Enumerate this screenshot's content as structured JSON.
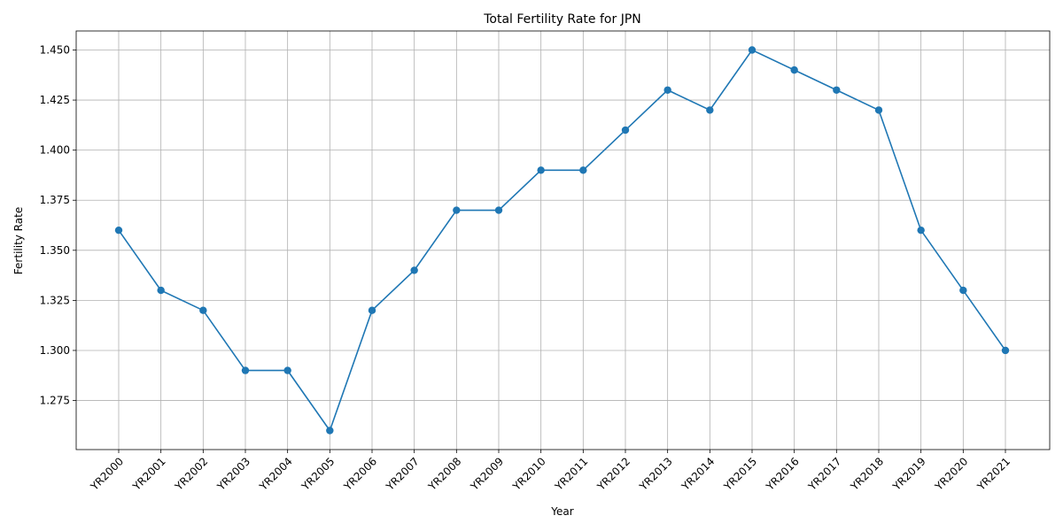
{
  "chart_data": {
    "type": "line",
    "title": "Total Fertility Rate for JPN",
    "xlabel": "Year",
    "ylabel": "Fertility Rate",
    "categories": [
      "YR2000",
      "YR2001",
      "YR2002",
      "YR2003",
      "YR2004",
      "YR2005",
      "YR2006",
      "YR2007",
      "YR2008",
      "YR2009",
      "YR2010",
      "YR2011",
      "YR2012",
      "YR2013",
      "YR2014",
      "YR2015",
      "YR2016",
      "YR2017",
      "YR2018",
      "YR2019",
      "YR2020",
      "YR2021"
    ],
    "series": [
      {
        "values": [
          1.36,
          1.33,
          1.32,
          1.29,
          1.29,
          1.26,
          1.32,
          1.34,
          1.37,
          1.37,
          1.39,
          1.39,
          1.41,
          1.43,
          1.42,
          1.45,
          1.44,
          1.43,
          1.42,
          1.36,
          1.33,
          1.3
        ],
        "color": "#1f77b4",
        "marker": "circle"
      }
    ],
    "yticks": [
      1.275,
      1.3,
      1.325,
      1.35,
      1.375,
      1.4,
      1.425,
      1.45
    ],
    "ytick_labels": [
      "1.275",
      "1.300",
      "1.325",
      "1.350",
      "1.375",
      "1.400",
      "1.425",
      "1.450"
    ],
    "ylim": [
      1.2505,
      1.4595
    ],
    "grid": true
  }
}
